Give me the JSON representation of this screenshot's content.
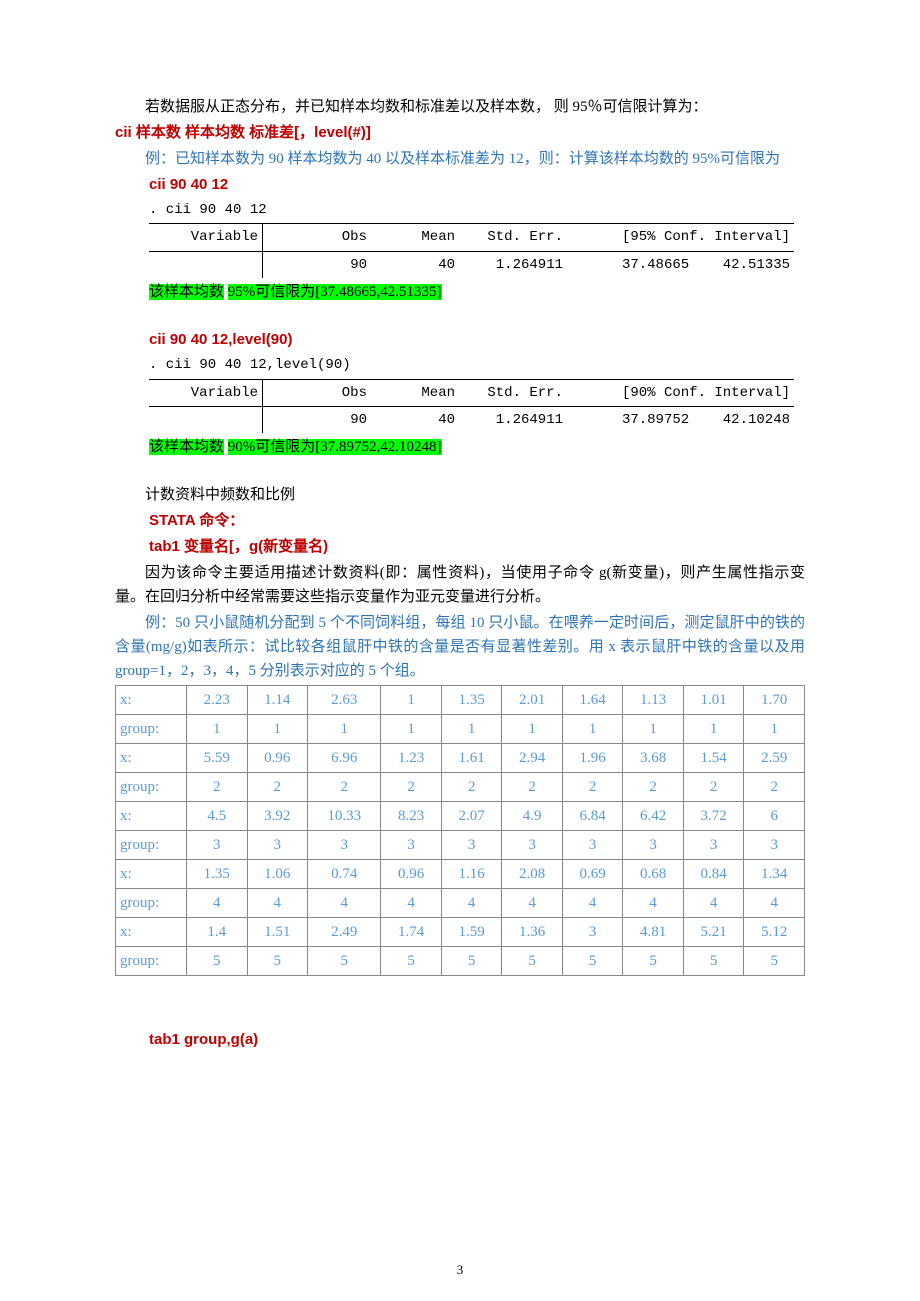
{
  "intro1": "若数据服从正态分布，并已知样本均数和标准差以及样本数，  则 95％可信限计算为：",
  "cmd1": "cii 样本数   样本均数    标准差[，level(#)]",
  "ex1": "例：已知样本数为 90 样本均数为 40 以及样本标准差为 12，则：计算该样本均数的 95%可信限为",
  "run1": "cii 90 40 12",
  "echo1": ". cii 90 40 12",
  "stata1": {
    "headers": [
      "Variable",
      "Obs",
      "Mean",
      "Std. Err.",
      "[95% Conf. Interval]"
    ],
    "obs": "90",
    "mean": "40",
    "se": "1.264911",
    "lo": "37.48665",
    "hi": "42.51335"
  },
  "result1a": "该样本均数",
  "result1b": "95%可信限为[37.48665,42.51335]",
  "run2": "cii 90 40 12,level(90)",
  "echo2": ". cii 90 40 12,level(90)",
  "stata2": {
    "headers": [
      "Variable",
      "Obs",
      "Mean",
      "Std. Err.",
      "[90% Conf. Interval]"
    ],
    "obs": "90",
    "mean": "40",
    "se": "1.264911",
    "lo": "37.89752",
    "hi": "42.10248"
  },
  "result2a": "该样本均数",
  "result2b": "90%可信限为[37.89752,42.10248]",
  "section2": "计数资料中频数和比例",
  "stata_lbl": "STATA 命令：",
  "cmd2": "tab1 变量名[，g(新变量名)",
  "para2": "因为该命令主要适用描述计数资料(即：属性资料)，当使用子命令 g(新变量)，则产生属性指示变量。在回归分析中经常需要这些指示变量作为亚元变量进行分析。",
  "ex2": "例：50 只小鼠随机分配到 5 个不同饲料组，每组 10 只小鼠。在喂养一定时间后，测定鼠肝中的铁的含量(mg/g)如表所示：试比较各组鼠肝中铁的含量是否有显著性差别。用 x 表示鼠肝中铁的含量以及用 group=1，2，3，4，5 分别表示对应的 5 个组。",
  "table": {
    "rows": [
      {
        "label": "x:",
        "vals": [
          "2.23",
          "1.14",
          "2.63",
          "1",
          "1.35",
          "2.01",
          "1.64",
          "1.13",
          "1.01",
          "1.70"
        ]
      },
      {
        "label": "group:",
        "vals": [
          "1",
          "1",
          "1",
          "1",
          "1",
          "1",
          "1",
          "1",
          "1",
          "1"
        ]
      },
      {
        "label": "x:",
        "vals": [
          "5.59",
          "0.96",
          "6.96",
          "1.23",
          "1.61",
          "2.94",
          "1.96",
          "3.68",
          "1.54",
          "2.59"
        ]
      },
      {
        "label": "group:",
        "vals": [
          "2",
          "2",
          "2",
          "2",
          "2",
          "2",
          "2",
          "2",
          "2",
          "2"
        ]
      },
      {
        "label": "x:",
        "vals": [
          "4.5",
          "3.92",
          "10.33",
          "8.23",
          "2.07",
          "4.9",
          "6.84",
          "6.42",
          "3.72",
          "6"
        ]
      },
      {
        "label": "group:",
        "vals": [
          "3",
          "3",
          "3",
          "3",
          "3",
          "3",
          "3",
          "3",
          "3",
          "3"
        ]
      },
      {
        "label": "x:",
        "vals": [
          "1.35",
          "1.06",
          "0.74",
          "0.96",
          "1.16",
          "2.08",
          "0.69",
          "0.68",
          "0.84",
          "1.34"
        ]
      },
      {
        "label": "group:",
        "vals": [
          "4",
          "4",
          "4",
          "4",
          "4",
          "4",
          "4",
          "4",
          "4",
          "4"
        ]
      },
      {
        "label": "x:",
        "vals": [
          "1.4",
          "1.51",
          "2.49",
          "1.74",
          "1.59",
          "1.36",
          "3",
          "4.81",
          "5.21",
          "5.12"
        ]
      },
      {
        "label": "group:",
        "vals": [
          "5",
          "5",
          "5",
          "5",
          "5",
          "5",
          "5",
          "5",
          "5",
          "5"
        ]
      }
    ]
  },
  "cmd3": "tab1 group,g(a)",
  "page_num": "3"
}
